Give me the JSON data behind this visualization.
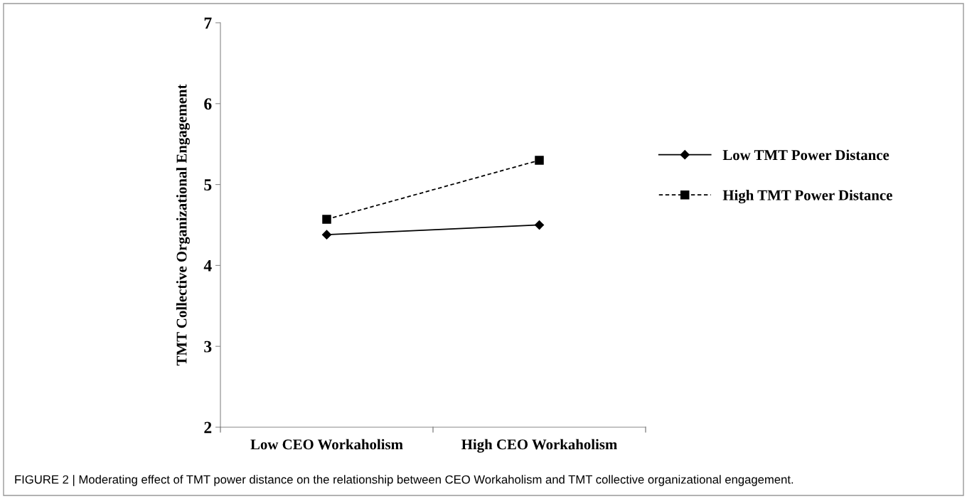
{
  "chart_data": {
    "type": "line",
    "ylabel": "TMT Collective Organizational Engagement",
    "categories": [
      "Low CEO Workaholism",
      "High CEO Workaholism"
    ],
    "series": [
      {
        "name": "Low TMT Power Distance",
        "color": "#000000",
        "values": [
          4.38,
          4.5
        ],
        "marker": "diamond",
        "line_style": "solid"
      },
      {
        "name": "High TMT Power Distance",
        "color": "#000000",
        "values": [
          4.57,
          5.3
        ],
        "marker": "square",
        "line_style": "dashed"
      }
    ],
    "ylim": [
      2,
      7
    ],
    "yticks": [
      2,
      3,
      4,
      5,
      6,
      7
    ],
    "grid": false,
    "legend": "right",
    "annotations": [
      "FIGURE 2 | Moderating effect of TMT power distance on the relationship between CEO Workaholism and TMT collective organizational engagement."
    ]
  }
}
